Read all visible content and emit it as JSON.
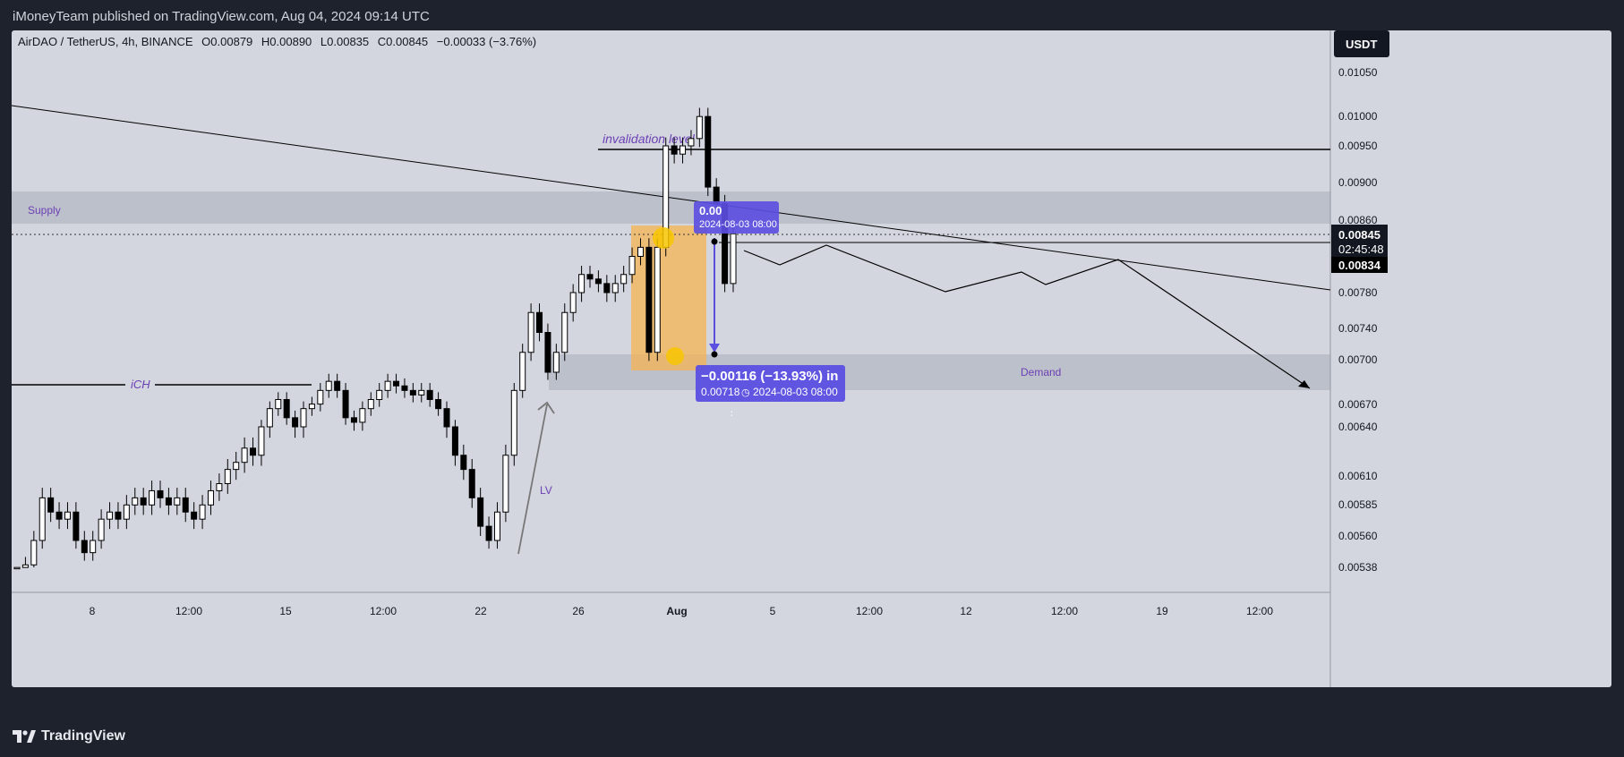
{
  "header": {
    "published": "iMoneyTeam published on TradingView.com, Aug 04, 2024 09:14 UTC"
  },
  "legend": {
    "symbol": "AirDAO / TetherUS, 4h, BINANCE",
    "open": "O0.00879",
    "high": "H0.00890",
    "low": "L0.00835",
    "close": "C0.00845",
    "change": "−0.00033 (−3.76%)"
  },
  "currency_button": "USDT",
  "price_tags": {
    "last": "0.00845",
    "countdown": "02:45:48",
    "crosshair": "0.00834"
  },
  "annotations": {
    "invalidation": "invalidation level",
    "supply": "Supply",
    "demand": "Demand",
    "ich": "iCH",
    "lv": "LV",
    "measure_top_value": "0.00",
    "measure_top_date": "2024-08-03 08:00",
    "measure_main": "−0.00116 (−13.93%) in",
    "measure_sub_price": "0.00718",
    "measure_sub_date": "2024-08-03  08:00"
  },
  "footer": {
    "brand": "TradingView"
  },
  "colors": {
    "panel_bg": "#d3d6df",
    "zone": "#bcc0ca",
    "candle": "#000000",
    "measure_box": "#5b4fe0",
    "orange_box": "#f5b453",
    "yellow_marker": "#f7c600",
    "purple_text": "#6c3fb5"
  },
  "chart_data": {
    "type": "candlestick",
    "title": "",
    "xlabel": "",
    "ylabel": "",
    "y_ticks": [
      "0.01050",
      "0.01000",
      "0.00950",
      "0.00900",
      "0.00860",
      "0.00820",
      "0.00780",
      "0.00740",
      "0.00700",
      "0.00670",
      "0.00640",
      "0.00610",
      "0.00585",
      "0.00560",
      "0.00538"
    ],
    "x_ticks": [
      "8",
      "12:00",
      "15",
      "12:00",
      "22",
      "26",
      "Aug",
      "5",
      "12:00",
      "12",
      "12:00",
      "19",
      "12:00",
      "26"
    ],
    "ylim": [
      0.0052,
      0.0108
    ],
    "supply_zone": [
      0.0086,
      0.00893
    ],
    "demand_zone": [
      0.00683,
      0.00718
    ],
    "invalidation_level": 0.00947,
    "ich_level": 0.0069,
    "last_price": 0.00845,
    "series": [
      {
        "values": [
          0.00525,
          0.0054,
          0.0056,
          0.0059,
          0.0058,
          0.00575,
          0.0058,
          0.0056,
          0.0055,
          0.0056,
          0.00575,
          0.0058,
          0.00575,
          0.00585,
          0.0059,
          0.00585,
          0.00595,
          0.0059,
          0.00585,
          0.0059,
          0.0058,
          0.00575,
          0.00585,
          0.00595,
          0.006,
          0.0061,
          0.00615,
          0.00625,
          0.0062,
          0.0064,
          0.0066,
          0.0067,
          0.0065,
          0.0064,
          0.0066,
          0.00665,
          0.0068,
          0.0069,
          0.0068,
          0.0065,
          0.00645,
          0.0066,
          0.0067,
          0.0068,
          0.0069,
          0.00685,
          0.0068,
          0.00675,
          0.0068,
          0.0067,
          0.0066,
          0.0064,
          0.0062,
          0.0061,
          0.0059,
          0.0057,
          0.0056,
          0.0058,
          0.0062,
          0.0068,
          0.0072,
          0.0076,
          0.0074,
          0.007,
          0.0072,
          0.0076,
          0.0078,
          0.008,
          0.00795,
          0.0079,
          0.0078,
          0.0079,
          0.008,
          0.0082,
          0.0083,
          0.0072,
          0.0083,
          0.0095,
          0.0094,
          0.0095,
          0.0096,
          0.0099,
          0.009,
          0.0088,
          0.0079,
          0.00845
        ]
      }
    ]
  }
}
